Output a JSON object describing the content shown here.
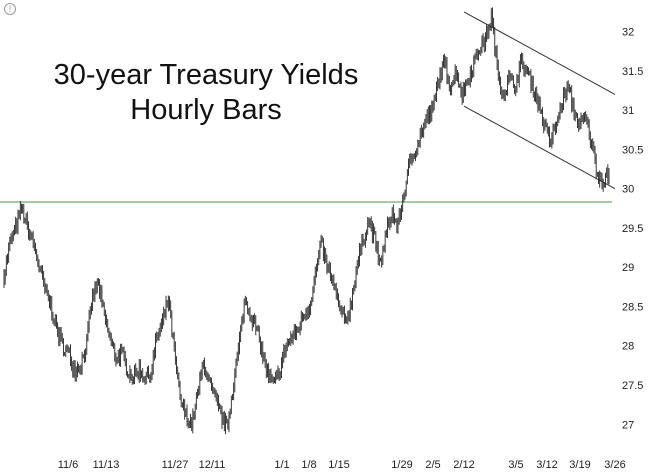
{
  "chart_data": {
    "type": "line",
    "title": "30-year Treasury Yields",
    "subtitle": "Hourly Bars",
    "xlabel": "",
    "ylabel": "",
    "x_tick_labels": [
      "11/6",
      "11/13",
      "11/27",
      "12/11",
      "1/1",
      "1/8",
      "1/15",
      "1/29",
      "2/5",
      "2/12",
      "3/5",
      "3/12",
      "3/19",
      "3/26"
    ],
    "y_ticks": [
      27,
      27.5,
      28,
      28.5,
      29,
      29.5,
      30,
      30.5,
      31,
      31.5,
      32
    ],
    "ylim": [
      26.8,
      32.3
    ],
    "grid": false,
    "y_axis_side": "right",
    "series": [
      {
        "style": "hourly-bars",
        "color": "#222222",
        "values": [
          28.9,
          29.3,
          29.5,
          29.75,
          29.5,
          29.3,
          29.0,
          28.7,
          28.5,
          28.2,
          28.0,
          27.9,
          27.7,
          27.75,
          28.0,
          28.6,
          28.8,
          28.4,
          28.1,
          27.85,
          27.9,
          27.7,
          27.6,
          27.7,
          27.6,
          27.65,
          28.1,
          28.3,
          28.6,
          27.9,
          27.3,
          27.1,
          27.0,
          27.4,
          27.8,
          27.5,
          27.3,
          27.1,
          26.95,
          27.5,
          28.0,
          28.6,
          28.4,
          28.2,
          27.9,
          27.6,
          27.5,
          27.7,
          28.0,
          28.1,
          28.2,
          28.4,
          28.5,
          28.9,
          29.3,
          29.0,
          28.8,
          28.5,
          28.3,
          28.5,
          29.0,
          29.3,
          29.6,
          29.4,
          29.0,
          29.4,
          29.7,
          29.5,
          29.9,
          30.3,
          30.5,
          30.7,
          30.9,
          31.0,
          31.4,
          31.6,
          31.3,
          31.5,
          31.2,
          31.4,
          31.6,
          31.8,
          31.9,
          32.2,
          31.5,
          31.2,
          31.4,
          31.3,
          31.6,
          31.5,
          31.3,
          31.1,
          30.8,
          30.6,
          30.8,
          31.1,
          31.3,
          31.0,
          30.8,
          30.9,
          30.6,
          30.2,
          30.1,
          30.2
        ]
      }
    ],
    "reference_lines": [
      {
        "kind": "horizontal",
        "y": 29.83,
        "color": "#4a9a4a"
      }
    ],
    "trend_channel": {
      "color": "#333333",
      "upper": [
        [
          "2/12",
          32.25
        ],
        [
          "3/26",
          31.2
        ]
      ],
      "lower": [
        [
          "2/12",
          31.05
        ],
        [
          "3/26",
          30.0
        ]
      ]
    }
  },
  "ui": {
    "info_icon_glyph": "!"
  }
}
